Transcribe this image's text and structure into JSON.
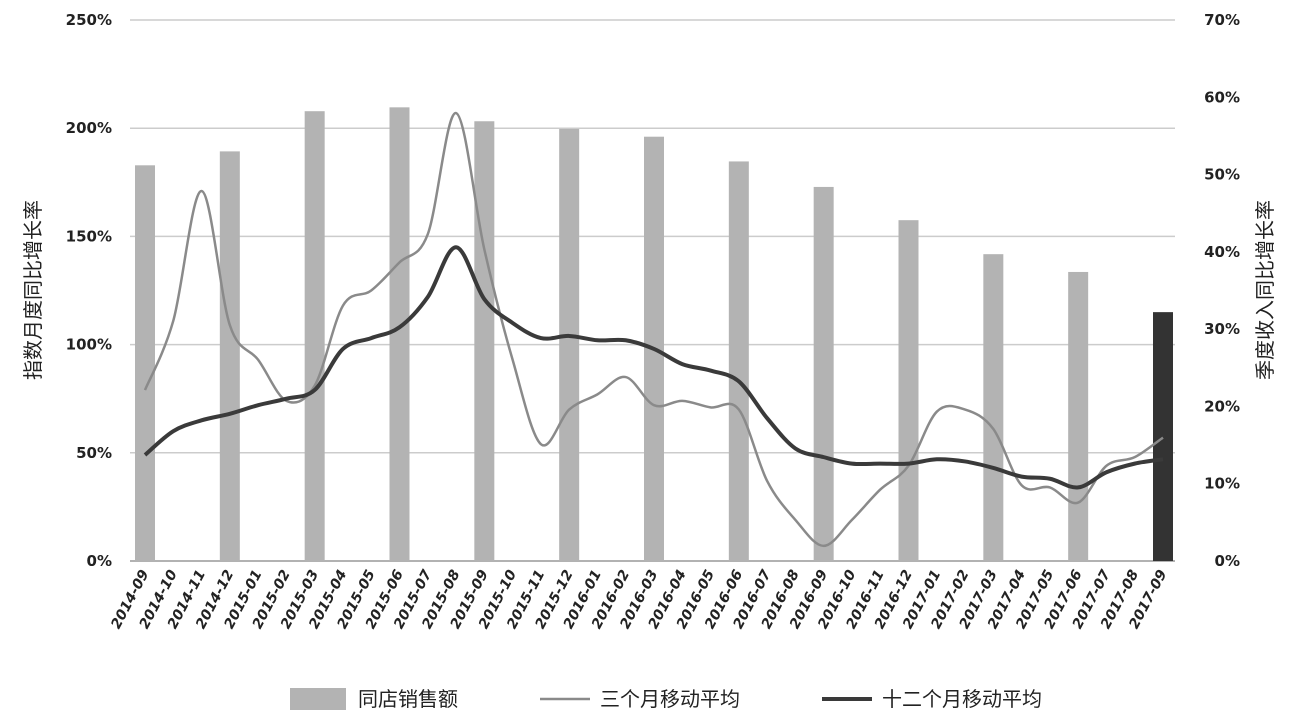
{
  "chart_data": {
    "type": "bar-line",
    "y_label": "指数月度同比增长率",
    "y2_label": "季度收入同比增长率",
    "categories": [
      "2014-09",
      "2014-10",
      "2014-11",
      "2014-12",
      "2015-01",
      "2015-02",
      "2015-03",
      "2015-04",
      "2015-05",
      "2015-06",
      "2015-07",
      "2015-08",
      "2015-09",
      "2015-10",
      "2015-11",
      "2015-12",
      "2016-01",
      "2016-02",
      "2016-03",
      "2016-04",
      "2016-05",
      "2016-06",
      "2016-07",
      "2016-08",
      "2016-09",
      "2016-10",
      "2016-11",
      "2016-12",
      "2017-01",
      "2017-02",
      "2017-03",
      "2017-04",
      "2017-05",
      "2017-06",
      "2017-07",
      "2017-08",
      "2017-09"
    ],
    "ylim": [
      0,
      250
    ],
    "yticks": [
      {
        "value": 0,
        "label": "0%"
      },
      {
        "value": 50,
        "label": "50%"
      },
      {
        "value": 100,
        "label": "100%"
      },
      {
        "value": 150,
        "label": "150%"
      },
      {
        "value": 200,
        "label": "200%"
      },
      {
        "value": 250,
        "label": "250%"
      }
    ],
    "y2lim": [
      0,
      70
    ],
    "y2ticks": [
      {
        "value": 0,
        "label": "0%"
      },
      {
        "value": 10,
        "label": "10%"
      },
      {
        "value": 20,
        "label": "20%"
      },
      {
        "value": 30,
        "label": "30%"
      },
      {
        "value": 40,
        "label": "40%"
      },
      {
        "value": 50,
        "label": "50%"
      },
      {
        "value": 60,
        "label": "60%"
      },
      {
        "value": 70,
        "label": "70%"
      }
    ],
    "grid": true,
    "legend": "bottom",
    "series": [
      {
        "name": "同店销售额",
        "type": "bar",
        "axis": "y2",
        "color": "#b3b3b3",
        "values": [
          51.2,
          null,
          null,
          53.0,
          null,
          null,
          58.2,
          null,
          null,
          58.7,
          null,
          null,
          56.9,
          null,
          null,
          55.9,
          null,
          null,
          54.9,
          null,
          null,
          51.7,
          null,
          null,
          48.4,
          null,
          null,
          44.1,
          null,
          null,
          39.7,
          null,
          null,
          37.4,
          null,
          null,
          32.2
        ],
        "colors": [
          "#b3b3b3",
          null,
          null,
          "#b3b3b3",
          null,
          null,
          "#b3b3b3",
          null,
          null,
          "#b3b3b3",
          null,
          null,
          "#b3b3b3",
          null,
          null,
          "#b3b3b3",
          null,
          null,
          "#b3b3b3",
          null,
          null,
          "#b3b3b3",
          null,
          null,
          "#b3b3b3",
          null,
          null,
          "#b3b3b3",
          null,
          null,
          "#b3b3b3",
          null,
          null,
          "#b3b3b3",
          null,
          null,
          "#333333"
        ]
      },
      {
        "name": "三个月移动平均",
        "type": "line",
        "axis": "y",
        "color": "#8a8a8a",
        "values": [
          79,
          111,
          171,
          109,
          93,
          74,
          81,
          118,
          125,
          138,
          151,
          207,
          144,
          93,
          54,
          70,
          77,
          85,
          72,
          74,
          71,
          70,
          37,
          19,
          7,
          19,
          33,
          44,
          69,
          70,
          61,
          35,
          34,
          27,
          44,
          48,
          57
        ]
      },
      {
        "name": "十二个月移动平均",
        "type": "line",
        "axis": "y",
        "color": "#3a3a3a",
        "values": [
          49,
          60,
          65,
          68,
          72,
          75,
          79,
          98,
          103,
          108,
          122,
          145,
          121,
          110,
          103,
          104,
          102,
          102,
          98,
          91,
          88,
          83,
          66,
          52,
          48,
          45,
          45,
          45,
          47,
          46,
          43,
          39,
          38,
          34,
          41,
          45,
          47
        ]
      }
    ]
  }
}
